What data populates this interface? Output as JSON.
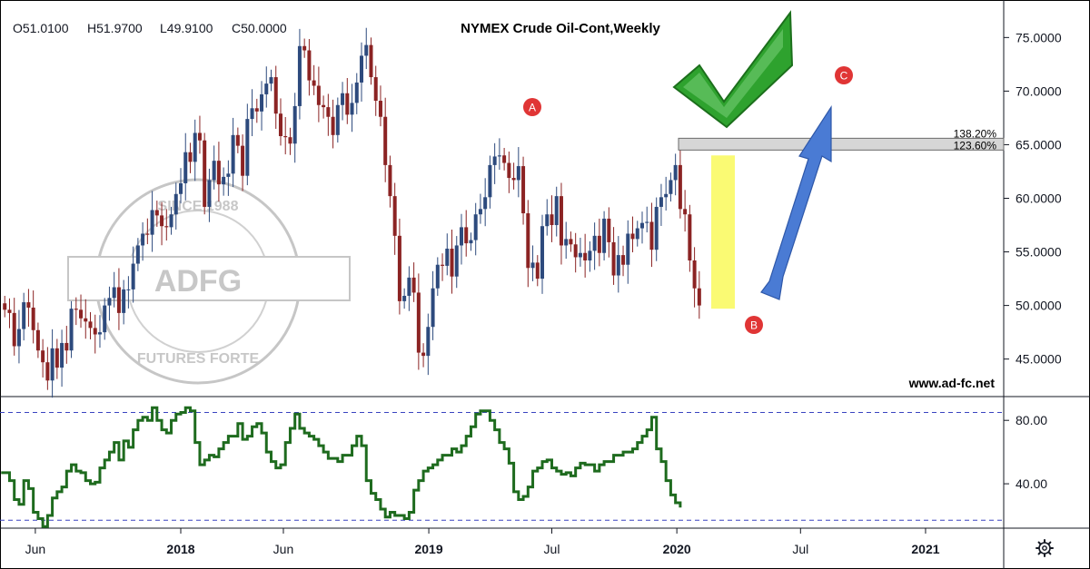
{
  "header": {
    "ohlc": [
      "O51.0100",
      "H51.9700",
      "L49.9100",
      "C50.0000"
    ],
    "title": "NYMEX Crude Oil-Cont,Weekly"
  },
  "watermark": {
    "text": "ADFG",
    "ring_top": "SINCE 1988",
    "ring_bottom": "FUTURES FORTE"
  },
  "website": "www.ad-fc.net",
  "annotations": {
    "wave_labels": [
      "A",
      "B",
      "C"
    ],
    "fib_levels": [
      {
        "label": "138.20%",
        "value": 65.6
      },
      {
        "label": "123.60%",
        "value": 64.5
      }
    ],
    "highlight_range": [
      49.7,
      64.0
    ],
    "arrow_color": "#4a7bd4",
    "check_color": "#2e9a2e"
  },
  "colors": {
    "up_candle": "#2d4a7d",
    "down_candle": "#8b2323",
    "indicator_line": "#1e6b1e",
    "ref_line": "#3a44c0",
    "highlight": "#f5f500",
    "wave_marker": "#e03535"
  },
  "chart_data": [
    {
      "type": "candlestick",
      "title": "NYMEX Crude Oil-Cont,Weekly",
      "ylim": [
        41.5,
        78.5
      ],
      "y_ticks": [
        "45.0000",
        "50.0000",
        "55.0000",
        "60.0000",
        "65.0000",
        "70.0000",
        "75.0000"
      ],
      "x_ticks": [
        "Jun",
        "2018",
        "Jun",
        "2019",
        "Jul",
        "2020",
        "Jul",
        "2021"
      ],
      "x_range": [
        "2017-04-10",
        "2021-04-26"
      ],
      "bold_ticks": [
        "2018",
        "2019",
        "2020",
        "2021"
      ],
      "weekly_close": [
        {
          "d": "2017-04-17",
          "c": 49.6
        },
        {
          "d": "2017-04-24",
          "c": 49.3
        },
        {
          "d": "2017-05-01",
          "c": 46.2
        },
        {
          "d": "2017-05-08",
          "c": 47.8
        },
        {
          "d": "2017-05-15",
          "c": 50.3
        },
        {
          "d": "2017-05-22",
          "c": 49.8
        },
        {
          "d": "2017-05-29",
          "c": 47.7
        },
        {
          "d": "2017-06-05",
          "c": 45.8
        },
        {
          "d": "2017-06-12",
          "c": 44.7
        },
        {
          "d": "2017-06-19",
          "c": 43.0
        },
        {
          "d": "2017-06-26",
          "c": 46.0
        },
        {
          "d": "2017-07-03",
          "c": 44.2
        },
        {
          "d": "2017-07-10",
          "c": 46.5
        },
        {
          "d": "2017-07-17",
          "c": 45.8
        },
        {
          "d": "2017-07-24",
          "c": 49.7
        },
        {
          "d": "2017-07-31",
          "c": 49.6
        },
        {
          "d": "2017-08-07",
          "c": 48.8
        },
        {
          "d": "2017-08-14",
          "c": 48.5
        },
        {
          "d": "2017-08-21",
          "c": 47.9
        },
        {
          "d": "2017-08-28",
          "c": 47.3
        },
        {
          "d": "2017-09-04",
          "c": 47.5
        },
        {
          "d": "2017-09-11",
          "c": 50.0
        },
        {
          "d": "2017-09-18",
          "c": 50.7
        },
        {
          "d": "2017-09-25",
          "c": 51.7
        },
        {
          "d": "2017-10-02",
          "c": 49.3
        },
        {
          "d": "2017-10-09",
          "c": 51.5
        },
        {
          "d": "2017-10-16",
          "c": 51.5
        },
        {
          "d": "2017-10-23",
          "c": 53.9
        },
        {
          "d": "2017-10-30",
          "c": 55.6
        },
        {
          "d": "2017-11-06",
          "c": 56.7
        },
        {
          "d": "2017-11-13",
          "c": 56.6
        },
        {
          "d": "2017-11-20",
          "c": 58.9
        },
        {
          "d": "2017-11-27",
          "c": 58.4
        },
        {
          "d": "2017-12-04",
          "c": 57.4
        },
        {
          "d": "2017-12-11",
          "c": 57.3
        },
        {
          "d": "2017-12-18",
          "c": 58.5
        },
        {
          "d": "2017-12-25",
          "c": 60.4
        },
        {
          "d": "2018-01-01",
          "c": 61.4
        },
        {
          "d": "2018-01-08",
          "c": 64.3
        },
        {
          "d": "2018-01-15",
          "c": 63.4
        },
        {
          "d": "2018-01-22",
          "c": 66.1
        },
        {
          "d": "2018-01-29",
          "c": 65.4
        },
        {
          "d": "2018-02-05",
          "c": 59.2
        },
        {
          "d": "2018-02-12",
          "c": 61.7
        },
        {
          "d": "2018-02-19",
          "c": 63.5
        },
        {
          "d": "2018-02-26",
          "c": 61.3
        },
        {
          "d": "2018-03-05",
          "c": 62.0
        },
        {
          "d": "2018-03-12",
          "c": 62.3
        },
        {
          "d": "2018-03-19",
          "c": 65.9
        },
        {
          "d": "2018-03-26",
          "c": 64.9
        },
        {
          "d": "2018-04-02",
          "c": 62.1
        },
        {
          "d": "2018-04-09",
          "c": 67.4
        },
        {
          "d": "2018-04-16",
          "c": 68.4
        },
        {
          "d": "2018-04-23",
          "c": 68.1
        },
        {
          "d": "2018-04-30",
          "c": 69.7
        },
        {
          "d": "2018-05-07",
          "c": 70.7
        },
        {
          "d": "2018-05-14",
          "c": 71.3
        },
        {
          "d": "2018-05-21",
          "c": 67.9
        },
        {
          "d": "2018-05-28",
          "c": 65.8
        },
        {
          "d": "2018-06-04",
          "c": 65.7
        },
        {
          "d": "2018-06-11",
          "c": 65.1
        },
        {
          "d": "2018-06-18",
          "c": 68.6
        },
        {
          "d": "2018-06-25",
          "c": 74.2
        },
        {
          "d": "2018-07-02",
          "c": 73.8
        },
        {
          "d": "2018-07-09",
          "c": 71.0
        },
        {
          "d": "2018-07-16",
          "c": 70.5
        },
        {
          "d": "2018-07-23",
          "c": 68.7
        },
        {
          "d": "2018-07-30",
          "c": 68.5
        },
        {
          "d": "2018-08-06",
          "c": 67.6
        },
        {
          "d": "2018-08-13",
          "c": 65.9
        },
        {
          "d": "2018-08-20",
          "c": 68.7
        },
        {
          "d": "2018-08-27",
          "c": 69.8
        },
        {
          "d": "2018-09-03",
          "c": 67.8
        },
        {
          "d": "2018-09-10",
          "c": 68.9
        },
        {
          "d": "2018-09-17",
          "c": 70.8
        },
        {
          "d": "2018-09-24",
          "c": 73.3
        },
        {
          "d": "2018-10-01",
          "c": 74.3
        },
        {
          "d": "2018-10-08",
          "c": 71.3
        },
        {
          "d": "2018-10-15",
          "c": 69.1
        },
        {
          "d": "2018-10-22",
          "c": 67.6
        },
        {
          "d": "2018-10-29",
          "c": 63.1
        },
        {
          "d": "2018-11-05",
          "c": 60.2
        },
        {
          "d": "2018-11-12",
          "c": 56.5
        },
        {
          "d": "2018-11-19",
          "c": 50.4
        },
        {
          "d": "2018-11-26",
          "c": 50.9
        },
        {
          "d": "2018-12-03",
          "c": 52.6
        },
        {
          "d": "2018-12-10",
          "c": 51.2
        },
        {
          "d": "2018-12-17",
          "c": 45.6
        },
        {
          "d": "2018-12-24",
          "c": 45.3
        },
        {
          "d": "2018-12-31",
          "c": 48.0
        },
        {
          "d": "2019-01-07",
          "c": 51.6
        },
        {
          "d": "2019-01-14",
          "c": 53.8
        },
        {
          "d": "2019-01-21",
          "c": 53.7
        },
        {
          "d": "2019-01-28",
          "c": 55.3
        },
        {
          "d": "2019-02-04",
          "c": 52.7
        },
        {
          "d": "2019-02-11",
          "c": 55.6
        },
        {
          "d": "2019-02-18",
          "c": 57.3
        },
        {
          "d": "2019-02-25",
          "c": 55.8
        },
        {
          "d": "2019-03-04",
          "c": 56.1
        },
        {
          "d": "2019-03-11",
          "c": 58.5
        },
        {
          "d": "2019-03-18",
          "c": 59.0
        },
        {
          "d": "2019-03-25",
          "c": 60.1
        },
        {
          "d": "2019-04-01",
          "c": 63.1
        },
        {
          "d": "2019-04-08",
          "c": 63.9
        },
        {
          "d": "2019-04-15",
          "c": 64.0
        },
        {
          "d": "2019-04-22",
          "c": 63.3
        },
        {
          "d": "2019-04-29",
          "c": 61.9
        },
        {
          "d": "2019-05-06",
          "c": 61.7
        },
        {
          "d": "2019-05-13",
          "c": 63.0
        },
        {
          "d": "2019-05-20",
          "c": 58.6
        },
        {
          "d": "2019-05-27",
          "c": 53.5
        },
        {
          "d": "2019-06-03",
          "c": 54.0
        },
        {
          "d": "2019-06-10",
          "c": 52.5
        },
        {
          "d": "2019-06-17",
          "c": 57.4
        },
        {
          "d": "2019-06-24",
          "c": 58.5
        },
        {
          "d": "2019-07-01",
          "c": 57.5
        },
        {
          "d": "2019-07-08",
          "c": 60.2
        },
        {
          "d": "2019-07-15",
          "c": 55.6
        },
        {
          "d": "2019-07-22",
          "c": 56.2
        },
        {
          "d": "2019-07-29",
          "c": 55.7
        },
        {
          "d": "2019-08-05",
          "c": 54.5
        },
        {
          "d": "2019-08-12",
          "c": 54.9
        },
        {
          "d": "2019-08-19",
          "c": 54.2
        },
        {
          "d": "2019-08-26",
          "c": 55.1
        },
        {
          "d": "2019-09-02",
          "c": 56.5
        },
        {
          "d": "2019-09-09",
          "c": 54.9
        },
        {
          "d": "2019-09-16",
          "c": 58.1
        },
        {
          "d": "2019-09-23",
          "c": 55.9
        },
        {
          "d": "2019-09-30",
          "c": 52.8
        },
        {
          "d": "2019-10-07",
          "c": 54.7
        },
        {
          "d": "2019-10-14",
          "c": 53.8
        },
        {
          "d": "2019-10-21",
          "c": 56.7
        },
        {
          "d": "2019-10-28",
          "c": 56.2
        },
        {
          "d": "2019-11-04",
          "c": 57.2
        },
        {
          "d": "2019-11-11",
          "c": 57.7
        },
        {
          "d": "2019-11-18",
          "c": 57.8
        },
        {
          "d": "2019-11-25",
          "c": 55.2
        },
        {
          "d": "2019-12-02",
          "c": 59.2
        },
        {
          "d": "2019-12-09",
          "c": 60.1
        },
        {
          "d": "2019-12-16",
          "c": 60.4
        },
        {
          "d": "2019-12-23",
          "c": 61.7
        },
        {
          "d": "2019-12-30",
          "c": 63.1
        },
        {
          "d": "2020-01-06",
          "c": 59.0
        },
        {
          "d": "2020-01-13",
          "c": 58.5
        },
        {
          "d": "2020-01-20",
          "c": 54.2
        },
        {
          "d": "2020-01-27",
          "c": 51.6
        },
        {
          "d": "2020-02-03",
          "c": 50.0
        }
      ]
    },
    {
      "type": "line",
      "ylim": [
        12,
        95
      ],
      "y_ticks": [
        "40.00",
        "80.00"
      ],
      "reference_lines": [
        85,
        17
      ],
      "weekly_value": [
        47,
        42,
        30,
        27,
        42,
        37,
        22,
        18,
        13,
        20,
        31,
        35,
        38,
        48,
        52,
        48,
        47,
        42,
        40,
        41,
        50,
        55,
        60,
        66,
        55,
        67,
        63,
        74,
        80,
        82,
        80,
        88,
        80,
        74,
        72,
        80,
        84,
        85,
        88,
        86,
        66,
        52,
        55,
        58,
        57,
        62,
        66,
        70,
        70,
        78,
        68,
        70,
        76,
        78,
        72,
        60,
        54,
        50,
        52,
        66,
        75,
        84,
        75,
        72,
        70,
        68,
        64,
        60,
        56,
        56,
        54,
        58,
        58,
        64,
        70,
        64,
        42,
        34,
        30,
        24,
        19,
        22,
        20,
        20,
        18,
        22,
        36,
        42,
        48,
        50,
        52,
        55,
        58,
        58,
        62,
        60,
        64,
        70,
        76,
        84,
        86,
        86,
        80,
        74,
        66,
        62,
        53,
        35,
        30,
        32,
        38,
        48,
        50,
        54,
        55,
        50,
        48,
        46,
        47,
        45,
        50,
        53,
        52,
        52,
        48,
        52,
        54,
        54,
        58,
        58,
        60,
        60,
        62,
        66,
        70,
        74,
        82,
        62,
        54,
        42,
        33,
        28,
        25
      ]
    }
  ]
}
